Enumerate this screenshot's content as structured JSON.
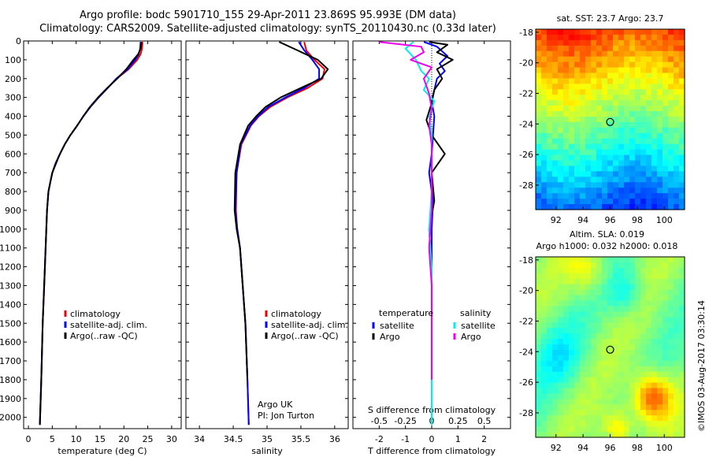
{
  "title": "Argo profile: bodc 5901710_155 29-Apr-2011 23.869S 95.993E (DM data)",
  "subtitle": "Climatology: CARS2009. Satellite-adjusted climatology: synTS_20110430.nc (0.33d later)",
  "timestamp": "©IMOS 03-Aug-2017 03:30:14",
  "colors": {
    "red": "#ee0000",
    "blue": "#0000ff",
    "black": "#000000",
    "cyan": "#00eeee",
    "magenta": "#ee00ee"
  },
  "chart_data": [
    {
      "type": "line",
      "id": "temperature",
      "xlabel": "temperature (deg C)",
      "ylabel": "",
      "xlim": [
        -1,
        32
      ],
      "ylim": [
        2060,
        0
      ],
      "xticks": [
        0,
        5,
        10,
        15,
        20,
        25,
        30
      ],
      "yticks": [
        0,
        100,
        200,
        300,
        400,
        500,
        600,
        700,
        800,
        900,
        1000,
        1100,
        1200,
        1300,
        1400,
        1500,
        1600,
        1700,
        1800,
        1900,
        2000
      ],
      "legend": [
        "climatology",
        "satellite-adj. clim.",
        "Argo(..raw -QC)"
      ],
      "legend_location": "lower-center",
      "series": [
        {
          "name": "climatology",
          "color": "red",
          "x": [
            23.9,
            23.8,
            23.5,
            22.8,
            21.0,
            18.5,
            16.6,
            14.7,
            13.0,
            11.5,
            10.2,
            8.8,
            7.6,
            6.6,
            5.7,
            5.0,
            4.6,
            4.2,
            3.9,
            3.6,
            3.3,
            3.0,
            2.7,
            2.4
          ],
          "y": [
            5,
            40,
            70,
            100,
            150,
            200,
            250,
            300,
            350,
            400,
            450,
            500,
            550,
            600,
            650,
            700,
            750,
            800,
            900,
            1100,
            1300,
            1500,
            1800,
            2040
          ]
        },
        {
          "name": "satellite-adj. clim.",
          "color": "blue",
          "x": [
            23.5,
            23.4,
            23.1,
            22.4,
            20.8,
            18.4,
            16.6,
            14.7,
            13.0,
            11.5,
            10.2,
            8.8,
            7.6,
            6.6,
            5.7,
            5.0,
            4.6,
            4.2,
            3.9,
            3.6,
            3.3,
            3.0,
            2.7,
            2.4
          ],
          "y": [
            5,
            40,
            70,
            100,
            150,
            200,
            250,
            300,
            350,
            400,
            450,
            500,
            550,
            600,
            650,
            700,
            750,
            800,
            900,
            1100,
            1300,
            1500,
            1800,
            2040
          ]
        },
        {
          "name": "Argo(..raw -QC)",
          "color": "black",
          "x": [
            23.7,
            23.5,
            23.0,
            22.0,
            20.5,
            18.6,
            16.5,
            14.6,
            12.9,
            11.5,
            10.2,
            8.8,
            7.6,
            6.6,
            5.8,
            5.0,
            4.6,
            4.2,
            3.9,
            3.6,
            3.3,
            3.0,
            2.7,
            2.4
          ],
          "y": [
            5,
            40,
            70,
            100,
            150,
            200,
            250,
            300,
            350,
            400,
            450,
            500,
            550,
            600,
            650,
            700,
            750,
            800,
            900,
            1100,
            1300,
            1500,
            1800,
            2040
          ]
        }
      ]
    },
    {
      "type": "line",
      "id": "salinity",
      "xlabel": "salinity",
      "xlim": [
        33.8,
        36.2
      ],
      "ylim": [
        2060,
        0
      ],
      "xticks": [
        34,
        34.5,
        35,
        35.5,
        36
      ],
      "xticklabels": [
        "34",
        "34.5",
        "35",
        "35.5",
        "36"
      ],
      "legend": [
        "climatology",
        "satellite-adj. clim.",
        "Argo(..raw -QC)"
      ],
      "legend_location": "lower-right",
      "annotation": [
        "Argo UK",
        "PI: Jon Turton"
      ],
      "series": [
        {
          "name": "climatology",
          "color": "red",
          "x": [
            35.55,
            35.58,
            35.7,
            35.85,
            35.82,
            35.6,
            35.3,
            35.05,
            34.88,
            34.76,
            34.62,
            34.55,
            34.54,
            34.56,
            34.6,
            34.64,
            34.68,
            34.71,
            34.73
          ],
          "y": [
            5,
            50,
            100,
            150,
            200,
            250,
            300,
            350,
            400,
            450,
            550,
            700,
            900,
            1000,
            1100,
            1300,
            1500,
            1800,
            2040
          ]
        },
        {
          "name": "satellite-adj. clim.",
          "color": "blue",
          "x": [
            35.47,
            35.55,
            35.67,
            35.77,
            35.77,
            35.55,
            35.27,
            35.02,
            34.87,
            34.75,
            34.61,
            34.55,
            34.53,
            34.56,
            34.6,
            34.64,
            34.68,
            34.71,
            34.73
          ],
          "y": [
            5,
            50,
            100,
            150,
            200,
            250,
            300,
            350,
            400,
            450,
            550,
            700,
            900,
            1000,
            1100,
            1300,
            1500,
            1800,
            2040
          ]
        },
        {
          "name": "Argo(..raw -QC)",
          "color": "black",
          "x": [
            35.18,
            35.45,
            35.75,
            35.9,
            35.8,
            35.5,
            35.2,
            34.98,
            34.84,
            34.72,
            34.6,
            34.53,
            34.52,
            34.55,
            34.6,
            34.64,
            34.68,
            34.71
          ],
          "y": [
            5,
            50,
            100,
            150,
            200,
            250,
            300,
            350,
            400,
            450,
            550,
            700,
            900,
            1000,
            1100,
            1300,
            1500,
            1800
          ]
        }
      ]
    },
    {
      "type": "line",
      "id": "differences",
      "xlabel": "T difference from climatology",
      "x2label": "S difference from climatology",
      "xlim": [
        -3,
        3
      ],
      "ylim": [
        2060,
        0
      ],
      "xticks": [
        -2,
        -1,
        0,
        1,
        2
      ],
      "xticklabels": [
        "-2",
        "-1",
        "0",
        "1",
        "2"
      ],
      "x2ticklabels": [
        "-0.5",
        "-0.25",
        "0",
        "0.25",
        "0.5"
      ],
      "legend_groups": [
        {
          "heading": "temperature",
          "entries": [
            "satellite",
            "Argo"
          ]
        },
        {
          "heading": "salinity",
          "entries": [
            "satellite",
            "Argo"
          ]
        }
      ],
      "series": [
        {
          "name": "satellite",
          "group": "temperature",
          "color": "blue",
          "x": [
            -0.3,
            0.2,
            0.6,
            0.3,
            0.5,
            0.2,
            0.1,
            0.0,
            0.1,
            0.05,
            0.0,
            -0.1,
            0.05,
            0.0,
            0.0,
            0.0,
            0.0,
            0.0
          ],
          "y": [
            5,
            30,
            80,
            120,
            160,
            200,
            260,
            320,
            400,
            500,
            600,
            700,
            850,
            1000,
            1200,
            1500,
            1800,
            2040
          ]
        },
        {
          "name": "Argo",
          "group": "temperature",
          "color": "black",
          "x": [
            -0.1,
            0.6,
            0.2,
            0.8,
            0.2,
            0.4,
            0.1,
            0.0,
            -0.2,
            0.0,
            0.5,
            0.0,
            0.1,
            -0.1,
            0.0,
            0.0,
            0.0
          ],
          "y": [
            5,
            20,
            60,
            100,
            150,
            200,
            260,
            330,
            420,
            500,
            600,
            700,
            850,
            1000,
            1200,
            1500,
            1800
          ]
        },
        {
          "name": "satellite",
          "group": "salinity",
          "color": "cyan",
          "x": [
            -0.7,
            -1.0,
            -0.6,
            -0.4,
            -0.1,
            -0.3,
            0.1,
            -0.1,
            0.0,
            0.0,
            0.0,
            0.0,
            -0.1,
            0.0,
            0.0,
            0.0,
            0.0,
            0.0
          ],
          "y": [
            5,
            40,
            100,
            160,
            200,
            260,
            320,
            400,
            500,
            600,
            700,
            800,
            1000,
            1200,
            1400,
            1600,
            1800,
            2040
          ]
        },
        {
          "name": "Argo",
          "group": "salinity",
          "color": "magenta",
          "x": [
            -2.0,
            -0.4,
            -0.3,
            -0.8,
            0.0,
            -0.3,
            -0.1,
            0.0,
            -0.1,
            0.0,
            0.0,
            0.0,
            0.0,
            -0.1,
            0.0,
            0.0,
            0.0
          ],
          "y": [
            5,
            30,
            60,
            100,
            140,
            200,
            280,
            360,
            450,
            550,
            650,
            750,
            900,
            1100,
            1300,
            1500,
            1800
          ]
        }
      ]
    },
    {
      "type": "heatmap",
      "id": "sst-map",
      "title": "sat. SST: 23.7 Argo: 23.7",
      "xlim": [
        90.5,
        101.5
      ],
      "ylim": [
        -29.6,
        -17.8
      ],
      "xticks": [
        92,
        94,
        96,
        98,
        100
      ],
      "yticks": [
        -18,
        -20,
        -22,
        -24,
        -26,
        -28
      ],
      "marker": {
        "lon": 96.0,
        "lat": -23.87
      },
      "colormap": "jet",
      "field": "sst-gradient"
    },
    {
      "type": "heatmap",
      "id": "sla-map",
      "title": "Altim. SLA: 0.019",
      "subtitle": "Argo h1000: 0.032 h2000: 0.018",
      "xlim": [
        90.5,
        101.5
      ],
      "ylim": [
        -29.6,
        -17.8
      ],
      "xticks": [
        92,
        94,
        96,
        98,
        100
      ],
      "yticks": [
        -18,
        -20,
        -22,
        -24,
        -26,
        -28
      ],
      "marker": {
        "lon": 96.0,
        "lat": -23.87
      },
      "colormap": "jet",
      "field": "sla-blobs"
    }
  ]
}
